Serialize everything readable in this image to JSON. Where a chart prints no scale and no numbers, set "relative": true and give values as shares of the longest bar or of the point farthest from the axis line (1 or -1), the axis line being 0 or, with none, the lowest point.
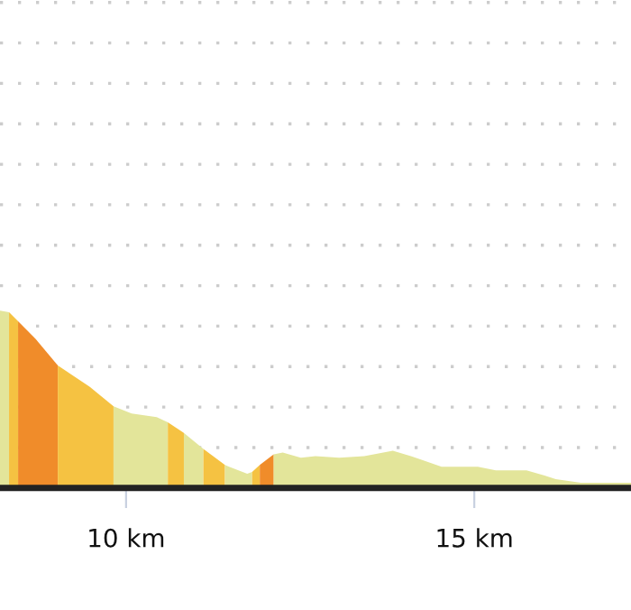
{
  "chart_data": {
    "type": "area",
    "relative": true,
    "xlim": [
      8.19,
      17.25
    ],
    "xticks": [
      {
        "value": 10,
        "label": "10 km"
      },
      {
        "value": 15,
        "label": "15 km"
      }
    ],
    "grid": "y",
    "series": [
      {
        "color": "#e3e59a",
        "x": [
          8.19,
          8.32
        ],
        "values": [
          1.0,
          0.99
        ]
      },
      {
        "color": "#f5c242",
        "x": [
          8.32,
          8.45
        ],
        "values": [
          0.99,
          0.94
        ]
      },
      {
        "color": "#f08c2a",
        "x": [
          8.45,
          8.7,
          9.02
        ],
        "values": [
          0.94,
          0.84,
          0.69
        ]
      },
      {
        "color": "#f5c242",
        "x": [
          9.02,
          9.48,
          9.82
        ],
        "values": [
          0.69,
          0.57,
          0.46
        ]
      },
      {
        "color": "#e3e59a",
        "x": [
          9.82,
          10.08,
          10.44,
          10.6
        ],
        "values": [
          0.46,
          0.42,
          0.4,
          0.37
        ]
      },
      {
        "color": "#f5c242",
        "x": [
          10.6,
          10.83
        ],
        "values": [
          0.37,
          0.31
        ]
      },
      {
        "color": "#e3e59a",
        "x": [
          10.83,
          11.11
        ],
        "values": [
          0.31,
          0.22
        ]
      },
      {
        "color": "#f5c242",
        "x": [
          11.11,
          11.42
        ],
        "values": [
          0.22,
          0.13
        ]
      },
      {
        "color": "#e3e59a",
        "x": [
          11.42,
          11.48,
          11.74,
          11.81
        ],
        "values": [
          0.13,
          0.12,
          0.08,
          0.09
        ]
      },
      {
        "color": "#f5c242",
        "x": [
          11.81,
          11.92
        ],
        "values": [
          0.09,
          0.13
        ]
      },
      {
        "color": "#f08c2a",
        "x": [
          11.92,
          12.12
        ],
        "values": [
          0.13,
          0.19
        ]
      },
      {
        "color": "#e3e59a",
        "x": [
          12.12,
          12.25,
          12.51,
          12.72,
          13.06,
          13.42,
          13.83,
          14.09,
          14.53,
          14.79,
          15.05,
          15.31,
          15.75,
          16.01,
          16.17,
          16.53,
          17.25
        ],
        "values": [
          0.19,
          0.2,
          0.17,
          0.18,
          0.17,
          0.18,
          0.21,
          0.18,
          0.12,
          0.12,
          0.12,
          0.1,
          0.1,
          0.07,
          0.05,
          0.03,
          0.03
        ]
      }
    ]
  }
}
